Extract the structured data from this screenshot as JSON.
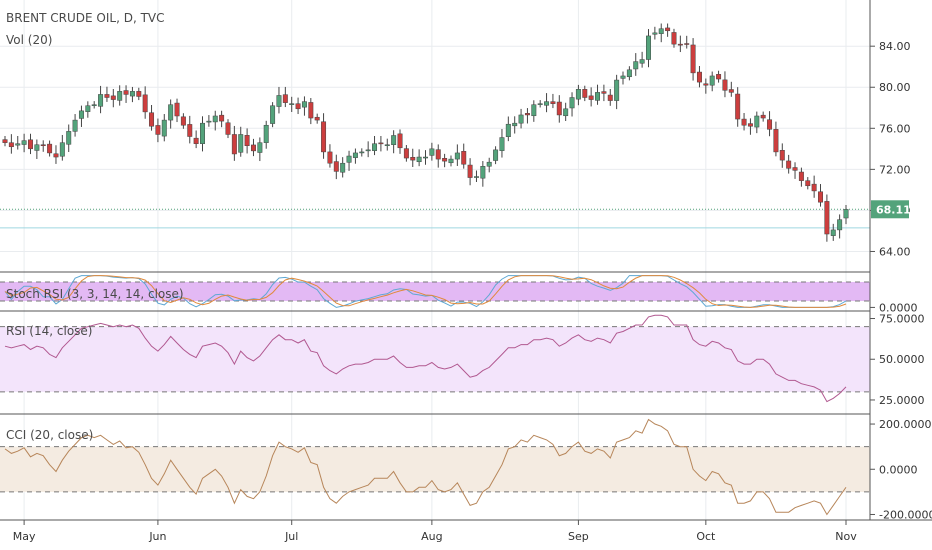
{
  "header": {
    "symbol_line": "BRENT CRUDE OIL, D, TVC",
    "volume_label": "Vol (20)"
  },
  "price_marker": {
    "label": "68.11",
    "color": "#53a37b"
  },
  "colors": {
    "up": "#53a37b",
    "down": "#cc3e3e",
    "stoch_band": "#e3b9f4",
    "rsi_band": "#f3e4fb",
    "rsi_line": "#b15890",
    "cci_band": "#f4ebe1",
    "cci_line": "#b7865a",
    "grid": "#e9ecef",
    "support_line": "#9fd6e0"
  },
  "chart_data": [
    {
      "type": "candlestick",
      "title": "BRENT CRUDE OIL, D, TVC",
      "ylim": [
        62.0,
        88.5
      ],
      "yticks": [
        "84.00",
        "80.00",
        "76.00",
        "72.00",
        "68.00",
        "64.00"
      ],
      "xticks": [
        "May",
        "Jun",
        "Jul",
        "Aug",
        "Sep",
        "Oct",
        "Nov"
      ],
      "last_price": 68.11,
      "grid": true,
      "close": [
        74.6,
        74.2,
        74.5,
        74.8,
        74.0,
        74.4,
        74.3,
        73.6,
        73.2,
        74.6,
        75.7,
        76.8,
        77.7,
        78.2,
        78.3,
        79.3,
        79.0,
        78.8,
        79.6,
        79.3,
        79.6,
        79.1,
        77.6,
        76.2,
        75.4,
        76.8,
        78.3,
        77.2,
        76.3,
        75.2,
        74.5,
        76.5,
        76.7,
        77.2,
        76.7,
        75.4,
        73.5,
        75.4,
        74.3,
        73.8,
        74.6,
        76.3,
        78.2,
        79.2,
        78.5,
        78.4,
        77.9,
        78.6,
        77.0,
        76.8,
        73.7,
        72.6,
        71.8,
        72.6,
        73.3,
        73.6,
        73.7,
        73.9,
        74.5,
        74.5,
        74.4,
        75.3,
        74.1,
        73.1,
        72.9,
        73.2,
        73.2,
        74.0,
        73.0,
        72.8,
        73.0,
        73.6,
        72.5,
        71.2,
        71.3,
        72.3,
        72.7,
        73.9,
        75.1,
        76.4,
        76.5,
        77.3,
        77.3,
        78.3,
        78.4,
        78.6,
        78.4,
        77.3,
        77.9,
        79.0,
        79.8,
        79.0,
        78.8,
        79.5,
        79.4,
        78.7,
        80.7,
        81.1,
        81.7,
        82.5,
        82.7,
        85.0,
        85.3,
        85.7,
        85.5,
        84.2,
        84.1,
        84.2,
        81.4,
        80.5,
        80.2,
        81.1,
        80.8,
        79.7,
        79.5,
        76.9,
        76.3,
        76.2,
        77.2,
        77.0,
        75.9,
        73.7,
        72.9,
        72.1,
        71.9,
        70.9,
        70.4,
        69.9,
        68.8,
        65.7,
        66.1,
        67.1,
        68.1
      ]
    },
    {
      "type": "line",
      "title": "Stoch RSI (3, 3, 14, 14, close)",
      "ylim": [
        -5,
        105
      ],
      "yticks": [
        "0.0000"
      ],
      "bands": [
        20,
        80
      ]
    },
    {
      "type": "line",
      "title": "RSI (14, close)",
      "ylim": [
        17,
        79
      ],
      "yticks": [
        "75.0000",
        "50.0000",
        "25.0000"
      ],
      "bands": [
        30,
        70
      ],
      "values": [
        58,
        57,
        58,
        59,
        56,
        58,
        57,
        53,
        51,
        57,
        61,
        65,
        69,
        70,
        71,
        72,
        71,
        70,
        71,
        70,
        71,
        69,
        63,
        58,
        55,
        59,
        64,
        60,
        56,
        53,
        51,
        58,
        59,
        60,
        58,
        54,
        47,
        55,
        51,
        49,
        52,
        57,
        62,
        65,
        62,
        62,
        60,
        62,
        55,
        54,
        46,
        43,
        41,
        44,
        46,
        47,
        47,
        48,
        50,
        50,
        50,
        52,
        48,
        45,
        45,
        46,
        46,
        48,
        45,
        44,
        45,
        47,
        43,
        39,
        40,
        43,
        45,
        49,
        53,
        57,
        57,
        59,
        59,
        62,
        62,
        63,
        62,
        58,
        60,
        63,
        65,
        62,
        61,
        63,
        62,
        60,
        66,
        67,
        69,
        71,
        71,
        76,
        77,
        77,
        76,
        71,
        71,
        71,
        62,
        59,
        58,
        61,
        60,
        57,
        56,
        49,
        47,
        47,
        50,
        50,
        47,
        41,
        39,
        37,
        37,
        35,
        34,
        33,
        31,
        24,
        26,
        29,
        33
      ]
    },
    {
      "type": "line",
      "title": "CCI (20, close)",
      "ylim": [
        -220,
        240
      ],
      "yticks": [
        "200.0000",
        "0.0000",
        "-200.0000"
      ],
      "bands": [
        -100,
        100
      ],
      "values": [
        90,
        70,
        80,
        95,
        55,
        70,
        60,
        20,
        -10,
        40,
        80,
        110,
        140,
        150,
        140,
        150,
        130,
        110,
        125,
        95,
        100,
        75,
        20,
        -40,
        -70,
        -20,
        40,
        0,
        -40,
        -80,
        -110,
        -40,
        -20,
        0,
        -30,
        -80,
        -150,
        -90,
        -120,
        -130,
        -100,
        -30,
        60,
        120,
        100,
        90,
        75,
        95,
        30,
        20,
        -80,
        -130,
        -150,
        -120,
        -100,
        -90,
        -80,
        -70,
        -40,
        -40,
        -40,
        -10,
        -60,
        -100,
        -100,
        -80,
        -80,
        -50,
        -90,
        -100,
        -90,
        -60,
        -110,
        -160,
        -150,
        -100,
        -80,
        -30,
        20,
        90,
        100,
        130,
        120,
        150,
        140,
        130,
        110,
        60,
        70,
        100,
        120,
        80,
        70,
        90,
        80,
        50,
        120,
        130,
        140,
        170,
        160,
        220,
        200,
        190,
        170,
        110,
        100,
        100,
        0,
        -30,
        -50,
        -10,
        -20,
        -60,
        -70,
        -150,
        -150,
        -140,
        -100,
        -100,
        -130,
        -190,
        -190,
        -190,
        -170,
        -160,
        -150,
        -140,
        -150,
        -200,
        -160,
        -120,
        -80
      ]
    }
  ]
}
